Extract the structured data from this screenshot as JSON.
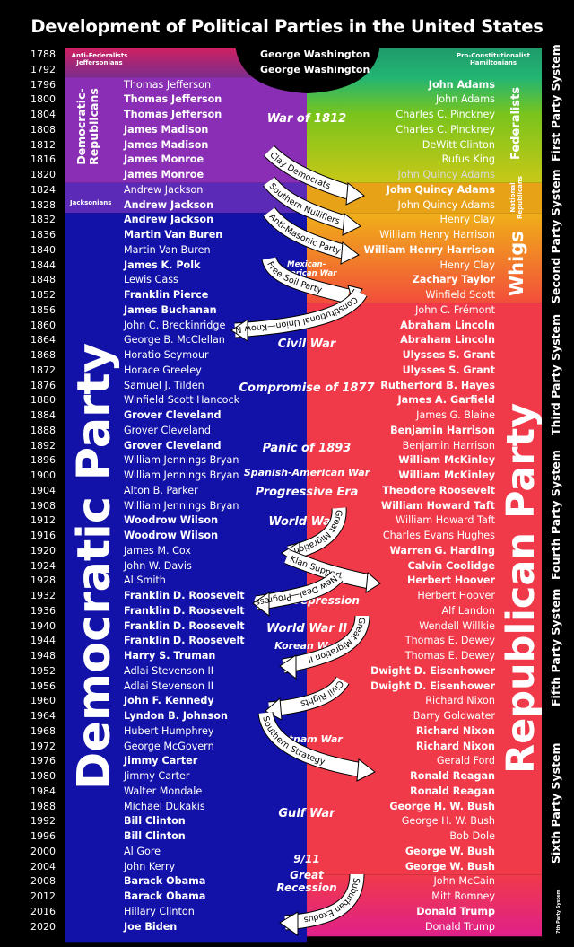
{
  "title": "Development of Political Parties in the United States",
  "colors": {
    "federalist": "#5bb82a",
    "antifederalist": "#7a1f7c",
    "demrep": "#8a2fb5",
    "democratic": "#1212a8",
    "republican": "#f03a4a",
    "whig_top": "#f2a21a",
    "whig_bottom": "#f06a2a",
    "background": "#000000"
  },
  "years": [
    "1788",
    "1792",
    "1796",
    "1800",
    "1804",
    "1808",
    "1812",
    "1816",
    "1820",
    "1824",
    "1828",
    "1832",
    "1836",
    "1840",
    "1844",
    "1848",
    "1852",
    "1856",
    "1860",
    "1864",
    "1868",
    "1872",
    "1876",
    "1880",
    "1884",
    "1888",
    "1892",
    "1896",
    "1900",
    "1904",
    "1908",
    "1912",
    "1916",
    "1920",
    "1924",
    "1928",
    "1932",
    "1936",
    "1940",
    "1944",
    "1948",
    "1952",
    "1956",
    "1960",
    "1964",
    "1968",
    "1972",
    "1976",
    "1980",
    "1984",
    "1988",
    "1992",
    "1996",
    "2000",
    "2004",
    "2008",
    "2012",
    "2016",
    "2020"
  ],
  "washington": [
    "George Washington",
    "George Washington"
  ],
  "left_candidates": [
    {
      "name": "",
      "bold": false
    },
    {
      "name": "",
      "bold": false
    },
    {
      "name": "Thomas Jefferson",
      "bold": false
    },
    {
      "name": "Thomas Jefferson",
      "bold": true
    },
    {
      "name": "Thomas Jefferson",
      "bold": true
    },
    {
      "name": "James Madison",
      "bold": true
    },
    {
      "name": "James Madison",
      "bold": true
    },
    {
      "name": "James Monroe",
      "bold": true
    },
    {
      "name": "James Monroe",
      "bold": true
    },
    {
      "name": "Andrew Jackson",
      "bold": false
    },
    {
      "name": "Andrew Jackson",
      "bold": true
    },
    {
      "name": "Andrew Jackson",
      "bold": true
    },
    {
      "name": "Martin Van Buren",
      "bold": true
    },
    {
      "name": "Martin Van Buren",
      "bold": false
    },
    {
      "name": "James K. Polk",
      "bold": true
    },
    {
      "name": "Lewis Cass",
      "bold": false
    },
    {
      "name": "Franklin Pierce",
      "bold": true
    },
    {
      "name": "James Buchanan",
      "bold": true
    },
    {
      "name": "John C. Breckinridge",
      "bold": false
    },
    {
      "name": "George B. McClellan",
      "bold": false
    },
    {
      "name": "Horatio Seymour",
      "bold": false
    },
    {
      "name": "Horace Greeley",
      "bold": false
    },
    {
      "name": "Samuel J. Tilden",
      "bold": false
    },
    {
      "name": "Winfield Scott Hancock",
      "bold": false
    },
    {
      "name": "Grover Cleveland",
      "bold": true
    },
    {
      "name": "Grover Cleveland",
      "bold": false
    },
    {
      "name": "Grover Cleveland",
      "bold": true
    },
    {
      "name": "William Jennings Bryan",
      "bold": false
    },
    {
      "name": "William Jennings Bryan",
      "bold": false
    },
    {
      "name": "Alton B. Parker",
      "bold": false
    },
    {
      "name": "William Jennings Bryan",
      "bold": false
    },
    {
      "name": "Woodrow Wilson",
      "bold": true
    },
    {
      "name": "Woodrow Wilson",
      "bold": true
    },
    {
      "name": "James M. Cox",
      "bold": false
    },
    {
      "name": "John W. Davis",
      "bold": false
    },
    {
      "name": "Al Smith",
      "bold": false
    },
    {
      "name": "Franklin D. Roosevelt",
      "bold": true
    },
    {
      "name": "Franklin D. Roosevelt",
      "bold": true
    },
    {
      "name": "Franklin D. Roosevelt",
      "bold": true
    },
    {
      "name": "Franklin D. Roosevelt",
      "bold": true
    },
    {
      "name": "Harry S. Truman",
      "bold": true
    },
    {
      "name": "Adlai Stevenson II",
      "bold": false
    },
    {
      "name": "Adlai Stevenson II",
      "bold": false
    },
    {
      "name": "John F. Kennedy",
      "bold": true
    },
    {
      "name": "Lyndon B. Johnson",
      "bold": true
    },
    {
      "name": "Hubert Humphrey",
      "bold": false
    },
    {
      "name": "George McGovern",
      "bold": false
    },
    {
      "name": "Jimmy Carter",
      "bold": true
    },
    {
      "name": "Jimmy Carter",
      "bold": false
    },
    {
      "name": "Walter Mondale",
      "bold": false
    },
    {
      "name": "Michael Dukakis",
      "bold": false
    },
    {
      "name": "Bill Clinton",
      "bold": true
    },
    {
      "name": "Bill Clinton",
      "bold": true
    },
    {
      "name": "Al Gore",
      "bold": false
    },
    {
      "name": "John Kerry",
      "bold": false
    },
    {
      "name": "Barack Obama",
      "bold": true
    },
    {
      "name": "Barack Obama",
      "bold": true
    },
    {
      "name": "Hillary Clinton",
      "bold": false
    },
    {
      "name": "Joe Biden",
      "bold": true
    }
  ],
  "right_candidates": [
    {
      "name": "",
      "bold": false
    },
    {
      "name": "",
      "bold": false
    },
    {
      "name": "John Adams",
      "bold": true
    },
    {
      "name": "John Adams",
      "bold": false
    },
    {
      "name": "Charles C. Pinckney",
      "bold": false
    },
    {
      "name": "Charles C. Pinckney",
      "bold": false
    },
    {
      "name": "DeWitt Clinton",
      "bold": false
    },
    {
      "name": "Rufus King",
      "bold": false
    },
    {
      "name": "John Quincy Adams",
      "bold": false,
      "grey": true
    },
    {
      "name": "John Quincy Adams",
      "bold": true
    },
    {
      "name": "John Quincy Adams",
      "bold": false
    },
    {
      "name": "Henry Clay",
      "bold": false
    },
    {
      "name": "William Henry Harrison",
      "bold": false
    },
    {
      "name": "William Henry Harrison",
      "bold": true
    },
    {
      "name": "Henry Clay",
      "bold": false
    },
    {
      "name": "Zachary Taylor",
      "bold": true
    },
    {
      "name": "Winfield Scott",
      "bold": false
    },
    {
      "name": "John C. Frémont",
      "bold": false
    },
    {
      "name": "Abraham Lincoln",
      "bold": true
    },
    {
      "name": "Abraham Lincoln",
      "bold": true
    },
    {
      "name": "Ulysses S. Grant",
      "bold": true
    },
    {
      "name": "Ulysses S. Grant",
      "bold": true
    },
    {
      "name": "Rutherford B. Hayes",
      "bold": true
    },
    {
      "name": "James A. Garfield",
      "bold": true
    },
    {
      "name": "James G. Blaine",
      "bold": false
    },
    {
      "name": "Benjamin Harrison",
      "bold": true
    },
    {
      "name": "Benjamin Harrison",
      "bold": false
    },
    {
      "name": "William McKinley",
      "bold": true
    },
    {
      "name": "William McKinley",
      "bold": true
    },
    {
      "name": "Theodore Roosevelt",
      "bold": true
    },
    {
      "name": "William Howard Taft",
      "bold": true
    },
    {
      "name": "William Howard Taft",
      "bold": false
    },
    {
      "name": "Charles Evans Hughes",
      "bold": false
    },
    {
      "name": "Warren G. Harding",
      "bold": true
    },
    {
      "name": "Calvin Coolidge",
      "bold": true
    },
    {
      "name": "Herbert Hoover",
      "bold": true
    },
    {
      "name": "Herbert Hoover",
      "bold": false
    },
    {
      "name": "Alf Landon",
      "bold": false
    },
    {
      "name": "Wendell Willkie",
      "bold": false
    },
    {
      "name": "Thomas E. Dewey",
      "bold": false
    },
    {
      "name": "Thomas E. Dewey",
      "bold": false
    },
    {
      "name": "Dwight D. Eisenhower",
      "bold": true
    },
    {
      "name": "Dwight D. Eisenhower",
      "bold": true
    },
    {
      "name": "Richard Nixon",
      "bold": false
    },
    {
      "name": "Barry Goldwater",
      "bold": false
    },
    {
      "name": "Richard Nixon",
      "bold": true
    },
    {
      "name": "Richard Nixon",
      "bold": true
    },
    {
      "name": "Gerald Ford",
      "bold": false
    },
    {
      "name": "Ronald Reagan",
      "bold": true
    },
    {
      "name": "Ronald Reagan",
      "bold": true
    },
    {
      "name": "George H. W. Bush",
      "bold": true
    },
    {
      "name": "George H. W. Bush",
      "bold": false
    },
    {
      "name": "Bob Dole",
      "bold": false
    },
    {
      "name": "George W. Bush",
      "bold": true
    },
    {
      "name": "George W. Bush",
      "bold": true
    },
    {
      "name": "John McCain",
      "bold": false
    },
    {
      "name": "Mitt Romney",
      "bold": false
    },
    {
      "name": "Donald Trump",
      "bold": true
    },
    {
      "name": "Donald Trump",
      "bold": false
    }
  ],
  "party_labels": {
    "antifed": "Anti-Federalists",
    "jeffersonians": "Jeffersonians",
    "procon": "Pro-Constitutionalist",
    "hamiltonians": "Hamiltonians",
    "jacksonians": "Jacksonians",
    "demrep": "Democratic-Republicans",
    "federalists": "Federalists",
    "national": "National",
    "republicans_small": "Republicans",
    "whigs": "Whigs",
    "democratic": "Democratic Party",
    "republican": "Republican Party"
  },
  "systems": [
    "First Party System",
    "Second Party System",
    "Third Party System",
    "Fourth Party System",
    "Fifth Party System",
    "Sixth Party System",
    "7th Party System"
  ],
  "events": [
    {
      "text": "War of 1812",
      "year_index": 4.3,
      "size": 13
    },
    {
      "text": "Mexican–",
      "year_index": 14.0,
      "size": 8.5
    },
    {
      "text": "American War",
      "year_index": 14.6,
      "size": 8.5
    },
    {
      "text": "Civil War",
      "year_index": 19.3,
      "size": 13
    },
    {
      "text": "Compromise of 1877",
      "year_index": 22.2,
      "size": 13
    },
    {
      "text": "Panic of 1893",
      "year_index": 26.2,
      "size": 13
    },
    {
      "text": "Spanish-American War",
      "year_index": 27.8,
      "size": 11
    },
    {
      "text": "Progressive Era",
      "year_index": 29.1,
      "size": 13
    },
    {
      "text": "World War I",
      "year_index": 31.1,
      "size": 13
    },
    {
      "text": "Great Depression",
      "year_index": 36.3,
      "size": 12
    },
    {
      "text": "World War II",
      "year_index": 38.2,
      "size": 13
    },
    {
      "text": "Korean War",
      "year_index": 39.3,
      "size": 11
    },
    {
      "text": "Vietnam War",
      "year_index": 45.5,
      "size": 11
    },
    {
      "text": "Gulf War",
      "year_index": 50.5,
      "size": 13
    },
    {
      "text": "9/11",
      "year_index": 53.5,
      "size": 12
    },
    {
      "text": "Great",
      "year_index": 54.6,
      "size": 12
    },
    {
      "text": "Recession",
      "year_index": 55.4,
      "size": 12
    }
  ],
  "arrows": {
    "clay": "Clay Democrats",
    "nullifiers": "Southern Nullifiers",
    "antimasonic": "Anti-Masonic Party",
    "freesoil": "Free Soil Party",
    "constitutional": "Constitutional Union—Know Nothing",
    "gm1": "Great Migration I",
    "klan": "Klan Support",
    "newdeal": "New Deal—Progressives",
    "gm2": "Great Migration II",
    "civil": "Civil Rights",
    "southern": "Southern Strategy",
    "suburban": "Suburban Exodus"
  }
}
